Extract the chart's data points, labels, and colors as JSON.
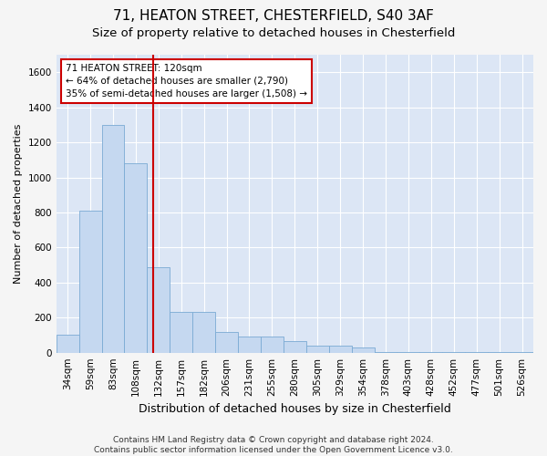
{
  "title_line1": "71, HEATON STREET, CHESTERFIELD, S40 3AF",
  "title_line2": "Size of property relative to detached houses in Chesterfield",
  "xlabel": "Distribution of detached houses by size in Chesterfield",
  "ylabel": "Number of detached properties",
  "categories": [
    "34sqm",
    "59sqm",
    "83sqm",
    "108sqm",
    "132sqm",
    "157sqm",
    "182sqm",
    "206sqm",
    "231sqm",
    "255sqm",
    "280sqm",
    "305sqm",
    "329sqm",
    "354sqm",
    "378sqm",
    "403sqm",
    "428sqm",
    "452sqm",
    "477sqm",
    "501sqm",
    "526sqm"
  ],
  "values": [
    100,
    810,
    1300,
    1080,
    490,
    230,
    230,
    120,
    90,
    90,
    65,
    40,
    40,
    28,
    5,
    5,
    5,
    5,
    5,
    5,
    5
  ],
  "bar_color": "#c5d8f0",
  "bar_edge_color": "#7aaad4",
  "bg_color": "#dce6f5",
  "grid_color": "#ffffff",
  "annotation_text": "71 HEATON STREET: 120sqm\n← 64% of detached houses are smaller (2,790)\n35% of semi-detached houses are larger (1,508) →",
  "annotation_box_color": "#ffffff",
  "annotation_box_edge_color": "#cc0000",
  "vline_x": 3.75,
  "vline_color": "#cc0000",
  "ylim": [
    0,
    1700
  ],
  "yticks": [
    0,
    200,
    400,
    600,
    800,
    1000,
    1200,
    1400,
    1600
  ],
  "footer": "Contains HM Land Registry data © Crown copyright and database right 2024.\nContains public sector information licensed under the Open Government Licence v3.0.",
  "title_fontsize": 11,
  "subtitle_fontsize": 9.5,
  "xlabel_fontsize": 9,
  "ylabel_fontsize": 8,
  "tick_fontsize": 7.5,
  "annot_fontsize": 7.5,
  "footer_fontsize": 6.5
}
